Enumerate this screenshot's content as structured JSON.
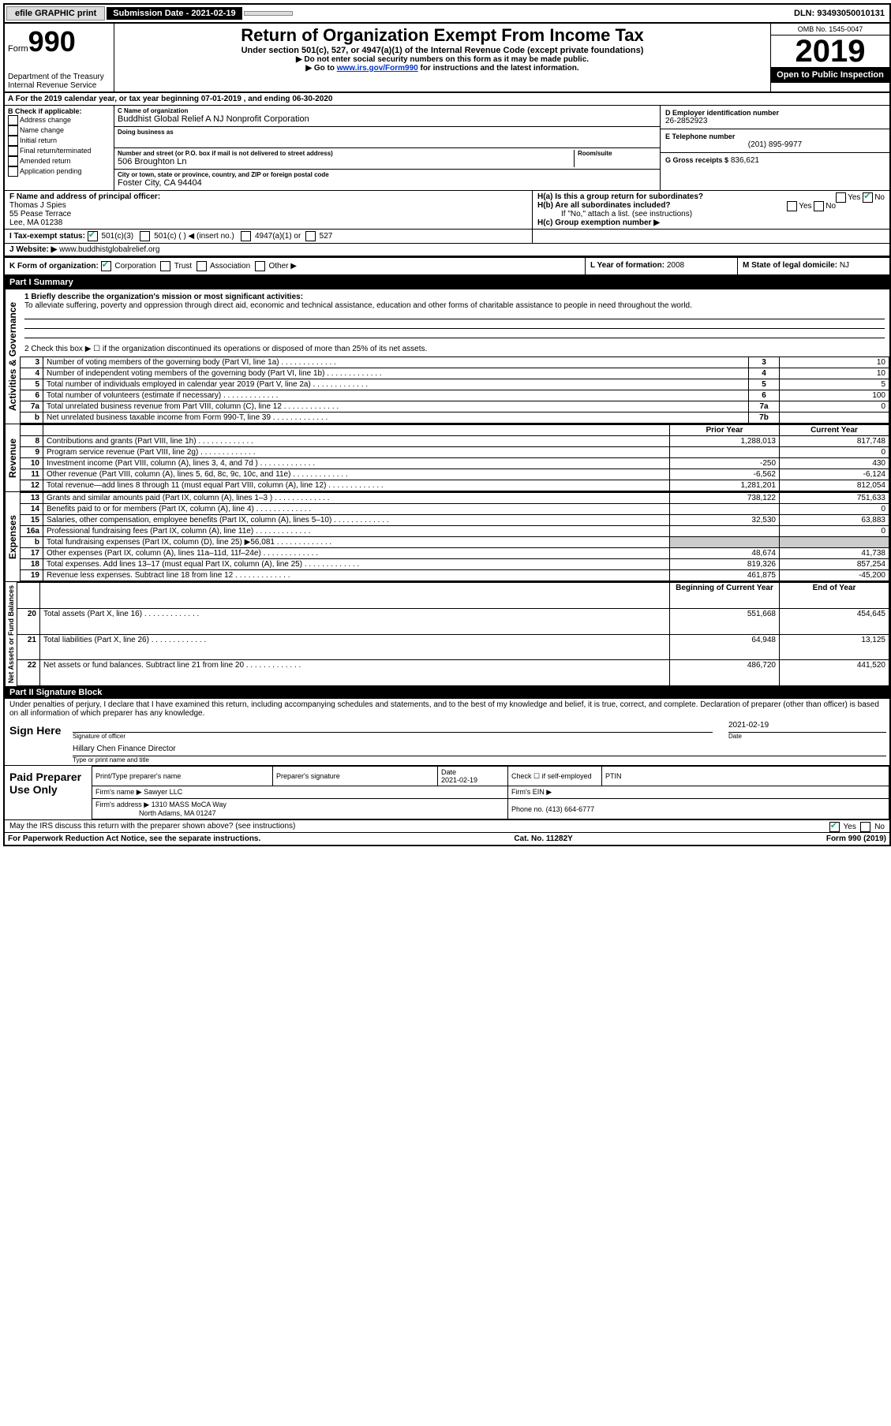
{
  "topbar": {
    "efile": "efile GRAPHIC print",
    "submission": "Submission Date - 2021-02-19",
    "dln": "DLN: 93493050010131"
  },
  "header": {
    "form_label": "Form",
    "form_num": "990",
    "dept": "Department of the Treasury\nInternal Revenue Service",
    "title": "Return of Organization Exempt From Income Tax",
    "sub": "Under section 501(c), 527, or 4947(a)(1) of the Internal Revenue Code (except private foundations)",
    "note1": "▶ Do not enter social security numbers on this form as it may be made public.",
    "note2_pre": "▶ Go to ",
    "note2_link": "www.irs.gov/Form990",
    "note2_post": " for instructions and the latest information.",
    "omb": "OMB No. 1545-0047",
    "year": "2019",
    "open": "Open to Public Inspection"
  },
  "sectionA": "A   For the 2019 calendar year, or tax year beginning 07-01-2019    , and ending 06-30-2020",
  "colB": {
    "header": "B Check if applicable:",
    "items": [
      "Address change",
      "Name change",
      "Initial return",
      "Final return/terminated",
      "Amended return",
      "Application pending"
    ]
  },
  "colC": {
    "name_label": "C Name of organization",
    "name": "Buddhist Global Relief A NJ Nonprofit Corporation",
    "dba_label": "Doing business as",
    "dba": "",
    "street_label": "Number and street (or P.O. box if mail is not delivered to street address)",
    "room_label": "Room/suite",
    "street": "506 Broughton Ln",
    "city_label": "City or town, state or province, country, and ZIP or foreign postal code",
    "city": "Foster City, CA  94404"
  },
  "colD": {
    "ein_label": "D Employer identification number",
    "ein": "26-2852923",
    "tel_label": "E Telephone number",
    "tel": "(201) 895-9977",
    "gross_label": "G Gross receipts $",
    "gross": "836,621"
  },
  "rowF": {
    "label": "F  Name and address of principal officer:",
    "name": "Thomas J Spies",
    "addr1": "55 Pease Terrace",
    "addr2": "Lee, MA  01238"
  },
  "rowH": {
    "a": "H(a)  Is this a group return for subordinates?",
    "b": "H(b)  Are all subordinates included?",
    "b_note": "If \"No,\" attach a list. (see instructions)",
    "c": "H(c)  Group exemption number ▶",
    "yes": "Yes",
    "no": "No"
  },
  "rowI": {
    "label": "I     Tax-exempt status:",
    "opts": [
      "501(c)(3)",
      "501(c) (   ) ◀ (insert no.)",
      "4947(a)(1) or",
      "527"
    ]
  },
  "rowJ": {
    "label": "J    Website: ▶",
    "val": "www.buddhistglobalrelief.org"
  },
  "rowK": {
    "label": "K Form of organization:",
    "opts": [
      "Corporation",
      "Trust",
      "Association",
      "Other ▶"
    ]
  },
  "rowL": {
    "label": "L Year of formation:",
    "val": "2008"
  },
  "rowM": {
    "label": "M State of legal domicile:",
    "val": "NJ"
  },
  "part1": {
    "header": "Part I      Summary",
    "gov_label": "Activities & Governance",
    "line1_label": "1  Briefly describe the organization's mission or most significant activities:",
    "line1_text": "To alleviate suffering, poverty and oppression through direct aid, economic and technical assistance, education and other forms of charitable assistance to people in need throughout the world.",
    "line2": "2   Check this box ▶ ☐  if the organization discontinued its operations or disposed of more than 25% of its net assets.",
    "lines_gov": [
      {
        "n": "3",
        "d": "Number of voting members of the governing body (Part VI, line 1a)",
        "b": "3",
        "v": "10"
      },
      {
        "n": "4",
        "d": "Number of independent voting members of the governing body (Part VI, line 1b)",
        "b": "4",
        "v": "10"
      },
      {
        "n": "5",
        "d": "Total number of individuals employed in calendar year 2019 (Part V, line 2a)",
        "b": "5",
        "v": "5"
      },
      {
        "n": "6",
        "d": "Total number of volunteers (estimate if necessary)",
        "b": "6",
        "v": "100"
      },
      {
        "n": "7a",
        "d": "Total unrelated business revenue from Part VIII, column (C), line 12",
        "b": "7a",
        "v": "0"
      },
      {
        "n": "b",
        "d": "Net unrelated business taxable income from Form 990-T, line 39",
        "b": "7b",
        "v": ""
      }
    ],
    "rev_label": "Revenue",
    "exp_label": "Expenses",
    "net_label": "Net Assets or Fund Balances",
    "col_prior": "Prior Year",
    "col_current": "Current Year",
    "col_beg": "Beginning of Current Year",
    "col_end": "End of Year",
    "rev": [
      {
        "n": "8",
        "d": "Contributions and grants (Part VIII, line 1h)",
        "p": "1,288,013",
        "c": "817,748"
      },
      {
        "n": "9",
        "d": "Program service revenue (Part VIII, line 2g)",
        "p": "",
        "c": "0"
      },
      {
        "n": "10",
        "d": "Investment income (Part VIII, column (A), lines 3, 4, and 7d )",
        "p": "-250",
        "c": "430"
      },
      {
        "n": "11",
        "d": "Other revenue (Part VIII, column (A), lines 5, 6d, 8c, 9c, 10c, and 11e)",
        "p": "-6,562",
        "c": "-6,124"
      },
      {
        "n": "12",
        "d": "Total revenue—add lines 8 through 11 (must equal Part VIII, column (A), line 12)",
        "p": "1,281,201",
        "c": "812,054"
      }
    ],
    "exp": [
      {
        "n": "13",
        "d": "Grants and similar amounts paid (Part IX, column (A), lines 1–3 )",
        "p": "738,122",
        "c": "751,633"
      },
      {
        "n": "14",
        "d": "Benefits paid to or for members (Part IX, column (A), line 4)",
        "p": "",
        "c": "0"
      },
      {
        "n": "15",
        "d": "Salaries, other compensation, employee benefits (Part IX, column (A), lines 5–10)",
        "p": "32,530",
        "c": "63,883"
      },
      {
        "n": "16a",
        "d": "Professional fundraising fees (Part IX, column (A), line 11e)",
        "p": "",
        "c": "0"
      },
      {
        "n": "b",
        "d": "Total fundraising expenses (Part IX, column (D), line 25) ▶56,081",
        "p": "shade",
        "c": "shade"
      },
      {
        "n": "17",
        "d": "Other expenses (Part IX, column (A), lines 11a–11d, 11f–24e)",
        "p": "48,674",
        "c": "41,738"
      },
      {
        "n": "18",
        "d": "Total expenses. Add lines 13–17 (must equal Part IX, column (A), line 25)",
        "p": "819,326",
        "c": "857,254"
      },
      {
        "n": "19",
        "d": "Revenue less expenses. Subtract line 18 from line 12",
        "p": "461,875",
        "c": "-45,200"
      }
    ],
    "net": [
      {
        "n": "20",
        "d": "Total assets (Part X, line 16)",
        "p": "551,668",
        "c": "454,645"
      },
      {
        "n": "21",
        "d": "Total liabilities (Part X, line 26)",
        "p": "64,948",
        "c": "13,125"
      },
      {
        "n": "22",
        "d": "Net assets or fund balances. Subtract line 21 from line 20",
        "p": "486,720",
        "c": "441,520"
      }
    ]
  },
  "part2": {
    "header": "Part II      Signature Block",
    "declaration": "Under penalties of perjury, I declare that I have examined this return, including accompanying schedules and statements, and to the best of my knowledge and belief, it is true, correct, and complete. Declaration of preparer (other than officer) is based on all information of which preparer has any knowledge.",
    "sign_here": "Sign Here",
    "sig_officer": "Signature of officer",
    "sig_date": "2021-02-19",
    "date": "Date",
    "name_title": "Hillary Chen  Finance Director",
    "type_name": "Type or print name and title",
    "paid": "Paid Preparer Use Only",
    "prep_name_label": "Print/Type preparer's name",
    "prep_sig_label": "Preparer's signature",
    "prep_date_label": "Date",
    "prep_date": "2021-02-19",
    "check_self": "Check ☐ if self-employed",
    "ptin": "PTIN",
    "firm_name_label": "Firm's name     ▶",
    "firm_name": "Sawyer LLC",
    "firm_ein_label": "Firm's EIN ▶",
    "firm_addr_label": "Firm's address ▶",
    "firm_addr1": "1310 MASS MoCA Way",
    "firm_addr2": "North Adams, MA  01247",
    "phone_label": "Phone no.",
    "phone": "(413) 664-6777",
    "discuss": "May the IRS discuss this return with the preparer shown above? (see instructions)",
    "yes": "Yes",
    "no": "No"
  },
  "footer": {
    "left": "For Paperwork Reduction Act Notice, see the separate instructions.",
    "mid": "Cat. No. 11282Y",
    "right": "Form 990 (2019)"
  }
}
